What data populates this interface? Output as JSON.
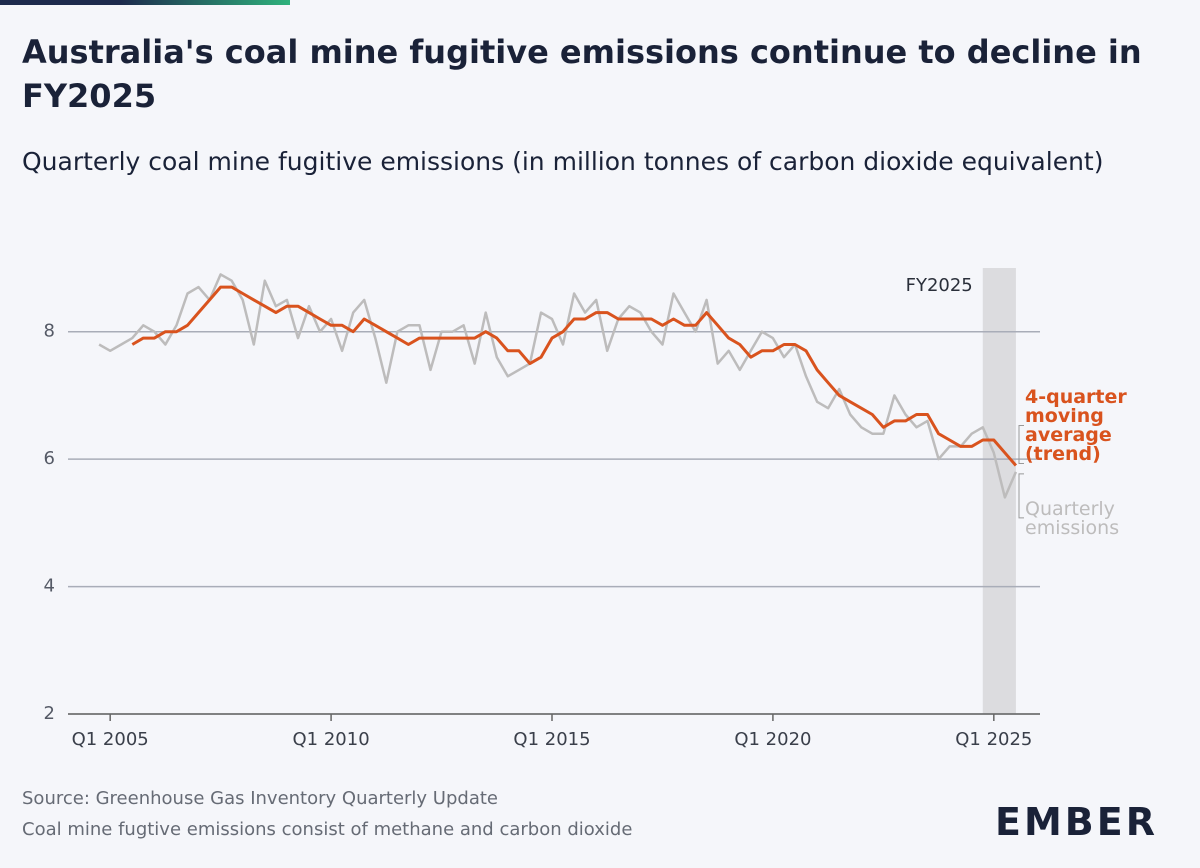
{
  "brand": "EMBER",
  "chart_data": {
    "type": "line",
    "title": "Australia's coal mine fugitive emissions continue to decline in FY2025",
    "subtitle": "Quarterly coal mine fugitive emissions (in million tonnes of carbon dioxide equivalent)",
    "source": "Source: Greenhouse Gas Inventory Quarterly Update",
    "note": "Coal mine fugtive emissions consist of methane and carbon dioxide",
    "highlight": {
      "label": "FY2025",
      "start": 2024.75,
      "end": 2025.5
    },
    "x": [
      2004.75,
      2005,
      2005.25,
      2005.5,
      2005.75,
      2006,
      2006.25,
      2006.5,
      2006.75,
      2007,
      2007.25,
      2007.5,
      2007.75,
      2008,
      2008.25,
      2008.5,
      2008.75,
      2009,
      2009.25,
      2009.5,
      2009.75,
      2010,
      2010.25,
      2010.5,
      2010.75,
      2011,
      2011.25,
      2011.5,
      2011.75,
      2012,
      2012.25,
      2012.5,
      2012.75,
      2013,
      2013.25,
      2013.5,
      2013.75,
      2014,
      2014.25,
      2014.5,
      2014.75,
      2015,
      2015.25,
      2015.5,
      2015.75,
      2016,
      2016.25,
      2016.5,
      2016.75,
      2017,
      2017.25,
      2017.5,
      2017.75,
      2018,
      2018.25,
      2018.5,
      2018.75,
      2019,
      2019.25,
      2019.5,
      2019.75,
      2020,
      2020.25,
      2020.5,
      2020.75,
      2021,
      2021.25,
      2021.5,
      2021.75,
      2022,
      2022.25,
      2022.5,
      2022.75,
      2023,
      2023.25,
      2023.5,
      2023.75,
      2024,
      2024.25,
      2024.5,
      2024.75,
      2025,
      2025.25,
      2025.5
    ],
    "series": [
      {
        "name": "Quarterly emissions",
        "color": "#bdbcbc",
        "values": [
          7.8,
          7.7,
          7.8,
          7.9,
          8.1,
          8.0,
          7.8,
          8.1,
          8.6,
          8.7,
          8.5,
          8.9,
          8.8,
          8.5,
          7.8,
          8.8,
          8.4,
          8.5,
          7.9,
          8.4,
          8.0,
          8.2,
          7.7,
          8.3,
          8.5,
          7.9,
          7.2,
          8.0,
          8.1,
          8.1,
          7.4,
          8.0,
          8.0,
          8.1,
          7.5,
          8.3,
          7.6,
          7.3,
          7.4,
          7.5,
          8.3,
          8.2,
          7.8,
          8.6,
          8.3,
          8.5,
          7.7,
          8.2,
          8.4,
          8.3,
          8.0,
          7.8,
          8.6,
          8.3,
          8.0,
          8.5,
          7.5,
          7.7,
          7.4,
          7.7,
          8.0,
          7.9,
          7.6,
          7.8,
          7.3,
          6.9,
          6.8,
          7.1,
          6.7,
          6.5,
          6.4,
          6.4,
          7.0,
          6.7,
          6.5,
          6.6,
          6.0,
          6.2,
          6.2,
          6.4,
          6.5,
          6.1,
          5.4,
          5.8
        ]
      },
      {
        "name": "4-quarter moving average (trend)",
        "color": "#d9531e",
        "values": [
          null,
          null,
          null,
          7.8,
          7.9,
          7.9,
          8.0,
          8.0,
          8.1,
          8.3,
          8.5,
          8.7,
          8.7,
          8.6,
          8.5,
          8.4,
          8.3,
          8.4,
          8.4,
          8.3,
          8.2,
          8.1,
          8.1,
          8.0,
          8.2,
          8.1,
          8.0,
          7.9,
          7.8,
          7.9,
          7.9,
          7.9,
          7.9,
          7.9,
          7.9,
          8.0,
          7.9,
          7.7,
          7.7,
          7.5,
          7.6,
          7.9,
          8.0,
          8.2,
          8.2,
          8.3,
          8.3,
          8.2,
          8.2,
          8.2,
          8.2,
          8.1,
          8.2,
          8.1,
          8.1,
          8.3,
          8.1,
          7.9,
          7.8,
          7.6,
          7.7,
          7.7,
          7.8,
          7.8,
          7.7,
          7.4,
          7.2,
          7.0,
          6.9,
          6.8,
          6.7,
          6.5,
          6.6,
          6.6,
          6.7,
          6.7,
          6.4,
          6.3,
          6.2,
          6.2,
          6.3,
          6.3,
          6.1,
          5.9
        ]
      }
    ],
    "xlim": [
      2004,
      2026
    ],
    "ylim": [
      2,
      9
    ],
    "xticks": [
      {
        "value": 2005,
        "label": "Q1 2005"
      },
      {
        "value": 2010,
        "label": "Q1 2010"
      },
      {
        "value": 2015,
        "label": "Q1 2015"
      },
      {
        "value": 2020,
        "label": "Q1 2020"
      },
      {
        "value": 2025,
        "label": "Q1 2025"
      }
    ],
    "yticks": [
      2,
      4,
      6,
      8
    ],
    "grid": true
  }
}
